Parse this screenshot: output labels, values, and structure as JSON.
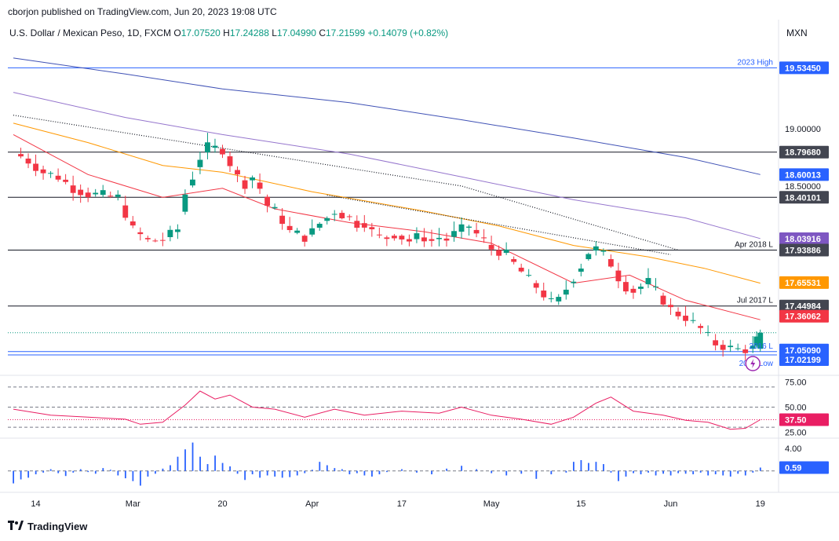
{
  "attribution": "cborjon published on TradingView.com, Jun 20, 2023 19:08 UTC",
  "symbol_title": "U.S. Dollar / Mexican Peso, 1D, FXCM",
  "ohlc": {
    "o_label": "O",
    "open": "17.07520",
    "h_label": "H",
    "high": "17.24288",
    "l_label": "L",
    "low": "17.04990",
    "c_label": "C",
    "close": "17.21599",
    "change": "+0.14079 (+0.82%)"
  },
  "currency": "MXN",
  "logo_text": "TradingView",
  "colors": {
    "up": "#089981",
    "down": "#f23645",
    "ema20": "#f23645",
    "ema50": "#ff9800",
    "ema100": "#9575cd",
    "ema200": "#3f51b5",
    "rsi": "#e91e63",
    "histogram": "#2962ff",
    "level_blue": "#2962ff",
    "level_black": "#131722"
  },
  "chart_data": [
    {
      "type": "candlestick",
      "title": "U.S. Dollar / Mexican Peso, 1D, FXCM",
      "y_axis_ticks": [
        "19.00000",
        "18.50000"
      ],
      "ylim": [
        16.85,
        19.75
      ],
      "x_tick_labels": [
        "14",
        "Mar",
        "20",
        "Apr",
        "17",
        "May",
        "15",
        "Jun",
        "19"
      ],
      "x_tick_index": [
        6,
        32,
        56,
        80,
        104,
        128,
        152,
        176,
        200
      ],
      "n_bars": 204,
      "ohlc_close_path": [
        [
          0,
          18.8
        ],
        [
          4,
          18.72
        ],
        [
          8,
          18.62
        ],
        [
          12,
          18.58
        ],
        [
          16,
          18.48
        ],
        [
          20,
          18.43
        ],
        [
          24,
          18.42
        ],
        [
          28,
          18.4
        ],
        [
          32,
          18.12
        ],
        [
          36,
          18.02
        ],
        [
          40,
          18.03
        ],
        [
          44,
          18.12
        ],
        [
          46,
          18.43
        ],
        [
          48,
          18.58
        ],
        [
          50,
          18.75
        ],
        [
          52,
          18.84
        ],
        [
          54,
          18.83
        ],
        [
          56,
          18.82
        ],
        [
          58,
          18.7
        ],
        [
          60,
          18.58
        ],
        [
          62,
          18.52
        ],
        [
          64,
          18.58
        ],
        [
          66,
          18.48
        ],
        [
          68,
          18.33
        ],
        [
          70,
          18.28
        ],
        [
          72,
          18.2
        ],
        [
          74,
          18.1
        ],
        [
          76,
          18.08
        ],
        [
          78,
          18.05
        ],
        [
          80,
          18.1
        ],
        [
          82,
          18.17
        ],
        [
          84,
          18.22
        ],
        [
          86,
          18.28
        ],
        [
          88,
          18.25
        ],
        [
          90,
          18.22
        ],
        [
          92,
          18.17
        ],
        [
          94,
          18.18
        ],
        [
          96,
          18.1
        ],
        [
          98,
          18.05
        ],
        [
          100,
          18.05
        ],
        [
          102,
          18.08
        ],
        [
          104,
          18.05
        ],
        [
          106,
          18.02
        ],
        [
          108,
          18.05
        ],
        [
          110,
          18.05
        ],
        [
          112,
          18.02
        ],
        [
          114,
          18.05
        ],
        [
          116,
          18.03
        ],
        [
          118,
          18.08
        ],
        [
          120,
          18.12
        ],
        [
          122,
          18.15
        ],
        [
          124,
          18.08
        ],
        [
          126,
          18.02
        ],
        [
          128,
          17.95
        ],
        [
          130,
          17.93
        ],
        [
          132,
          17.9
        ],
        [
          134,
          17.82
        ],
        [
          136,
          17.75
        ],
        [
          138,
          17.68
        ],
        [
          140,
          17.62
        ],
        [
          142,
          17.55
        ],
        [
          144,
          17.48
        ],
        [
          146,
          17.5
        ],
        [
          148,
          17.6
        ],
        [
          150,
          17.7
        ],
        [
          152,
          17.8
        ],
        [
          154,
          17.92
        ],
        [
          156,
          17.95
        ],
        [
          158,
          17.9
        ],
        [
          160,
          17.82
        ],
        [
          162,
          17.7
        ],
        [
          164,
          17.62
        ],
        [
          166,
          17.58
        ],
        [
          168,
          17.62
        ],
        [
          170,
          17.66
        ],
        [
          172,
          17.58
        ],
        [
          174,
          17.5
        ],
        [
          176,
          17.42
        ],
        [
          178,
          17.38
        ],
        [
          180,
          17.35
        ],
        [
          182,
          17.3
        ],
        [
          184,
          17.25
        ],
        [
          186,
          17.18
        ],
        [
          188,
          17.12
        ],
        [
          190,
          17.1
        ],
        [
          192,
          17.08
        ],
        [
          194,
          17.07
        ],
        [
          196,
          17.07
        ],
        [
          198,
          17.08
        ],
        [
          200,
          17.22
        ]
      ],
      "ema20": [
        [
          0,
          18.95
        ],
        [
          20,
          18.6
        ],
        [
          40,
          18.4
        ],
        [
          56,
          18.48
        ],
        [
          70,
          18.3
        ],
        [
          90,
          18.18
        ],
        [
          110,
          18.1
        ],
        [
          128,
          18.0
        ],
        [
          150,
          17.65
        ],
        [
          165,
          17.72
        ],
        [
          180,
          17.5
        ],
        [
          200,
          17.33
        ]
      ],
      "ema50": [
        [
          0,
          19.05
        ],
        [
          20,
          18.88
        ],
        [
          40,
          18.68
        ],
        [
          56,
          18.62
        ],
        [
          80,
          18.45
        ],
        [
          110,
          18.28
        ],
        [
          130,
          18.15
        ],
        [
          150,
          17.98
        ],
        [
          170,
          17.88
        ],
        [
          185,
          17.78
        ],
        [
          200,
          17.65
        ]
      ],
      "ema100": [
        [
          0,
          19.32
        ],
        [
          30,
          19.1
        ],
        [
          56,
          18.95
        ],
        [
          90,
          18.78
        ],
        [
          120,
          18.58
        ],
        [
          150,
          18.38
        ],
        [
          180,
          18.22
        ],
        [
          200,
          18.04
        ]
      ],
      "ema200": [
        [
          0,
          19.62
        ],
        [
          30,
          19.48
        ],
        [
          56,
          19.35
        ],
        [
          90,
          19.23
        ],
        [
          120,
          19.08
        ],
        [
          150,
          18.92
        ],
        [
          180,
          18.75
        ],
        [
          200,
          18.6
        ]
      ],
      "trendline_dotted": [
        [
          0,
          19.12
        ],
        [
          120,
          18.5
        ],
        [
          178,
          17.94
        ]
      ],
      "trendline_dotted_2": [
        [
          84,
          18.42
        ],
        [
          176,
          17.9
        ]
      ],
      "levels": [
        {
          "value": 19.5345,
          "price_label": "19.53450",
          "text": "2023 High",
          "color": "#2962ff"
        },
        {
          "value": 18.7968,
          "price_label": "18.79680",
          "text": "",
          "color": "#131722"
        },
        {
          "value": 18.60013,
          "price_label": "18.60013",
          "text": "",
          "color": "#2962ff"
        },
        {
          "value": 18.40101,
          "price_label": "18.40101",
          "text": "",
          "color": "#131722"
        },
        {
          "value": 18.03916,
          "price_label": "18.03916",
          "text": "",
          "color": "#7e57c2"
        },
        {
          "value": 17.93886,
          "price_label": "17.93886",
          "text": "Apr 2018 L",
          "color": "#131722"
        },
        {
          "value": 17.65531,
          "price_label": "17.65531",
          "text": "",
          "color": "#ff9800"
        },
        {
          "value": 17.44984,
          "price_label": "17.44984",
          "text": "Jul 2017 L",
          "color": "#131722"
        },
        {
          "value": 17.36062,
          "price_label": "17.36062",
          "text": "",
          "color": "#f23645"
        },
        {
          "value": 17.0509,
          "price_label": "17.05090",
          "text": "2016 L",
          "color": "#2962ff"
        },
        {
          "value": 17.02199,
          "price_label": "17.02199",
          "text": "2023 Low",
          "color": "#2962ff"
        }
      ],
      "current_price": 17.21599
    },
    {
      "type": "line",
      "name": "RSI",
      "y_axis_ticks": [
        "75.00",
        "50.00",
        "25.00"
      ],
      "ylim": [
        20,
        80
      ],
      "reference_lines": [
        70,
        50,
        30
      ],
      "current_value_label": "37.50",
      "current_value": 37.5,
      "values": [
        [
          0,
          48
        ],
        [
          10,
          42
        ],
        [
          20,
          40
        ],
        [
          30,
          38
        ],
        [
          34,
          33
        ],
        [
          40,
          35
        ],
        [
          46,
          52
        ],
        [
          50,
          66
        ],
        [
          54,
          58
        ],
        [
          58,
          62
        ],
        [
          64,
          50
        ],
        [
          70,
          48
        ],
        [
          78,
          40
        ],
        [
          86,
          48
        ],
        [
          94,
          42
        ],
        [
          104,
          46
        ],
        [
          114,
          44
        ],
        [
          120,
          50
        ],
        [
          128,
          42
        ],
        [
          136,
          38
        ],
        [
          144,
          33
        ],
        [
          150,
          40
        ],
        [
          156,
          54
        ],
        [
          160,
          60
        ],
        [
          166,
          46
        ],
        [
          174,
          42
        ],
        [
          180,
          37
        ],
        [
          186,
          35
        ],
        [
          192,
          28
        ],
        [
          196,
          29
        ],
        [
          200,
          37.5
        ]
      ]
    },
    {
      "type": "bar",
      "name": "Histogram",
      "y_axis_ticks": [
        "4.00"
      ],
      "ylim": [
        -3.5,
        5.5
      ],
      "current_value_label": "0.59",
      "current_value": 0.59,
      "values": [
        [
          0,
          -2.2
        ],
        [
          2,
          -1.5
        ],
        [
          4,
          -1.2
        ],
        [
          6,
          -0.6
        ],
        [
          8,
          -0.3
        ],
        [
          10,
          0.3
        ],
        [
          12,
          -0.4
        ],
        [
          14,
          -0.9
        ],
        [
          16,
          -0.3
        ],
        [
          18,
          0.3
        ],
        [
          20,
          -0.2
        ],
        [
          22,
          -0.5
        ],
        [
          24,
          0.5
        ],
        [
          26,
          0.2
        ],
        [
          28,
          -0.8
        ],
        [
          30,
          -1.3
        ],
        [
          32,
          -1.8
        ],
        [
          34,
          -2.6
        ],
        [
          36,
          -1.0
        ],
        [
          38,
          -0.5
        ],
        [
          40,
          0.4
        ],
        [
          42,
          1.0
        ],
        [
          44,
          2.5
        ],
        [
          46,
          3.8
        ],
        [
          48,
          5.0
        ],
        [
          50,
          2.5
        ],
        [
          52,
          1.2
        ],
        [
          54,
          2.7
        ],
        [
          56,
          1.4
        ],
        [
          58,
          0.8
        ],
        [
          60,
          -0.5
        ],
        [
          62,
          -1.6
        ],
        [
          64,
          -0.6
        ],
        [
          66,
          -1.2
        ],
        [
          68,
          -0.8
        ],
        [
          70,
          -1.0
        ],
        [
          72,
          -1.2
        ],
        [
          74,
          -1.1
        ],
        [
          76,
          -0.8
        ],
        [
          78,
          -0.4
        ],
        [
          80,
          0.2
        ],
        [
          82,
          1.6
        ],
        [
          84,
          1.0
        ],
        [
          86,
          0.5
        ],
        [
          88,
          0.3
        ],
        [
          90,
          -0.6
        ],
        [
          92,
          -0.4
        ],
        [
          94,
          -0.8
        ],
        [
          96,
          -1.0
        ],
        [
          98,
          -0.6
        ],
        [
          100,
          -0.2
        ],
        [
          104,
          0.3
        ],
        [
          108,
          -0.3
        ],
        [
          112,
          -0.6
        ],
        [
          116,
          0.4
        ],
        [
          120,
          0.9
        ],
        [
          124,
          0.3
        ],
        [
          128,
          -0.4
        ],
        [
          132,
          -0.8
        ],
        [
          136,
          -0.5
        ],
        [
          140,
          -1.4
        ],
        [
          144,
          -0.6
        ],
        [
          148,
          -0.3
        ],
        [
          150,
          1.6
        ],
        [
          152,
          1.9
        ],
        [
          154,
          1.4
        ],
        [
          156,
          1.6
        ],
        [
          158,
          1.2
        ],
        [
          160,
          -0.3
        ],
        [
          162,
          -1.8
        ],
        [
          164,
          -1.0
        ],
        [
          166,
          -0.4
        ],
        [
          168,
          -0.6
        ],
        [
          170,
          -0.3
        ],
        [
          172,
          -0.8
        ],
        [
          174,
          -0.5
        ],
        [
          176,
          -0.8
        ],
        [
          178,
          -0.4
        ],
        [
          180,
          -0.5
        ],
        [
          182,
          -0.6
        ],
        [
          184,
          -0.3
        ],
        [
          186,
          -0.8
        ],
        [
          188,
          -0.6
        ],
        [
          190,
          -0.8
        ],
        [
          192,
          -1.0
        ],
        [
          194,
          -0.5
        ],
        [
          196,
          -0.8
        ],
        [
          198,
          -0.3
        ],
        [
          200,
          0.59
        ]
      ]
    }
  ]
}
